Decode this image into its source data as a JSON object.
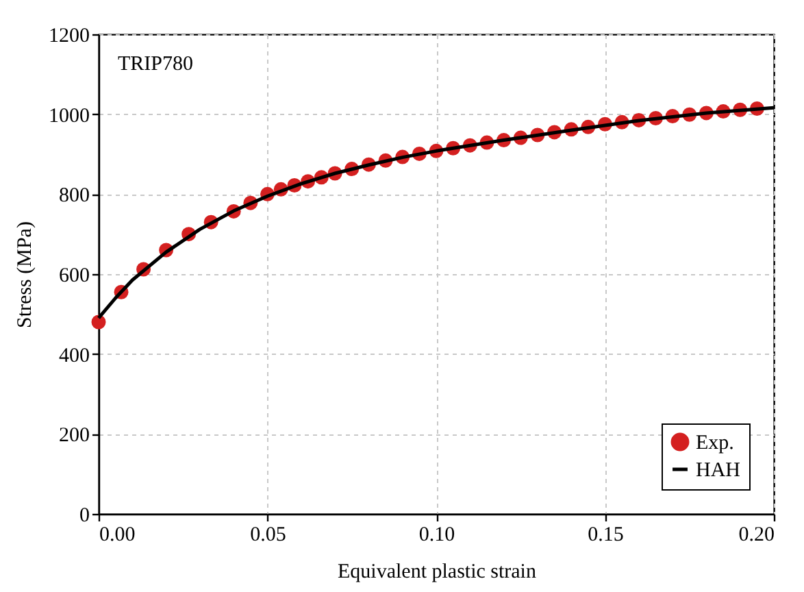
{
  "chart_data": {
    "type": "scatter",
    "xlabel": "Equivalent plastic strain",
    "ylabel": "Stress (MPa)",
    "annotations": [
      "TRIP780"
    ],
    "xlim": [
      0,
      0.2
    ],
    "ylim": [
      0,
      1200
    ],
    "xticks": [
      {
        "value": 0,
        "label": "0.00"
      },
      {
        "value": 0.05,
        "label": "0.05"
      },
      {
        "value": 0.1,
        "label": "0.10"
      },
      {
        "value": 0.15,
        "label": "0.15"
      },
      {
        "value": 0.2,
        "label": "0.20"
      }
    ],
    "yticks": [
      0,
      200,
      400,
      600,
      800,
      1000,
      1200
    ],
    "grid": true,
    "legend": "bottom right",
    "marker": "circle",
    "series": [
      {
        "name": "Exp.",
        "color": "#d42020",
        "x": [
          0,
          0.0067,
          0.0133,
          0.02,
          0.0267,
          0.0333,
          0.04,
          0.045,
          0.05,
          0.054,
          0.058,
          0.062,
          0.066,
          0.07,
          0.075,
          0.08,
          0.085,
          0.09,
          0.095,
          0.1,
          0.105,
          0.11,
          0.115,
          0.12,
          0.125,
          0.13,
          0.135,
          0.14,
          0.145,
          0.15,
          0.155,
          0.16,
          0.165,
          0.17,
          0.175,
          0.18,
          0.185,
          0.19,
          0.195
        ],
        "values": [
          480,
          555,
          612,
          660,
          700,
          730,
          757,
          778,
          800,
          812,
          822,
          832,
          842,
          852,
          863,
          874,
          884,
          893,
          901,
          908,
          915,
          922,
          929,
          935,
          941,
          948,
          955,
          962,
          968,
          975,
          980,
          985,
          990,
          995,
          999,
          1003,
          1007,
          1011,
          1014
        ]
      },
      {
        "name": "HAH",
        "type": "line",
        "color": "#000000",
        "line_style": "solid",
        "marker": "none",
        "x": [
          0,
          0.005,
          0.01,
          0.02,
          0.03,
          0.04,
          0.05,
          0.06,
          0.07,
          0.08,
          0.09,
          0.1,
          0.12,
          0.14,
          0.16,
          0.18,
          0.2
        ],
        "values": [
          490,
          540,
          585,
          655,
          712,
          758,
          795,
          826,
          852,
          873,
          892,
          908,
          935,
          960,
          984,
          1003,
          1016
        ]
      }
    ]
  }
}
